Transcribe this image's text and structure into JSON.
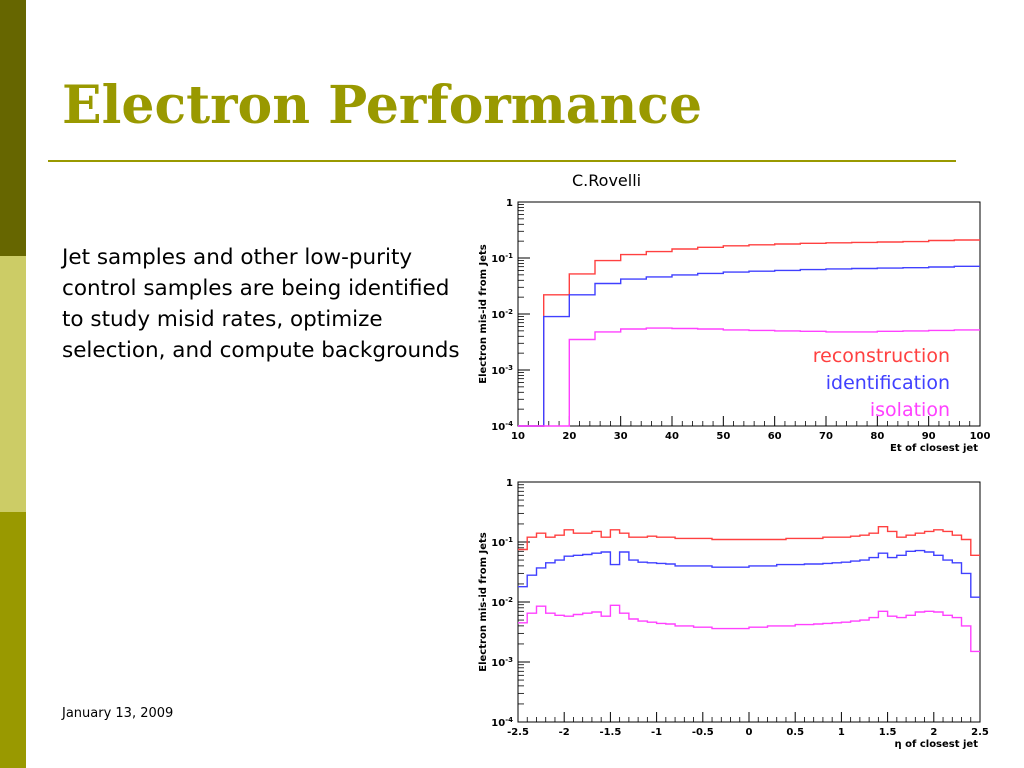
{
  "slide": {
    "title": "Electron Performance",
    "body": "Jet samples and other low-purity control samples are being identified to study misid rates, optimize selection,  and compute backgrounds",
    "date": "January 13, 2009",
    "credit": "C.Rovelli",
    "colors": {
      "title": "#999900",
      "rule": "#999900",
      "sidebar_dark": "#666600",
      "sidebar_light": "#CCCC66",
      "sidebar_mid": "#999900"
    }
  },
  "chart_data": [
    {
      "type": "line",
      "style": "step",
      "title": "",
      "xlabel": "Et of closest jet",
      "ylabel": "Electron mis-id from Jets",
      "xlim": [
        10,
        100
      ],
      "ylim": [
        0.0001,
        1
      ],
      "yscale": "log",
      "grid": false,
      "legend": "inside-bottom-right",
      "x_ticks": [
        10,
        20,
        30,
        40,
        50,
        60,
        70,
        80,
        90,
        100
      ],
      "y_ticks": [
        {
          "value": 1,
          "base": "1",
          "exp": ""
        },
        {
          "value": 0.1,
          "base": "10",
          "exp": "-1"
        },
        {
          "value": 0.01,
          "base": "10",
          "exp": "-2"
        },
        {
          "value": 0.001,
          "base": "10",
          "exp": "-3"
        },
        {
          "value": 0.0001,
          "base": "10",
          "exp": "-4"
        }
      ],
      "bin_edges": [
        10,
        15,
        20,
        25,
        30,
        35,
        40,
        45,
        50,
        55,
        60,
        65,
        70,
        75,
        80,
        85,
        90,
        95,
        100
      ],
      "series": [
        {
          "name": "reconstruction",
          "color": "#ff4040",
          "values": [
            0.0001,
            0.022,
            0.052,
            0.09,
            0.115,
            0.13,
            0.145,
            0.155,
            0.165,
            0.172,
            0.178,
            0.183,
            0.187,
            0.19,
            0.193,
            0.196,
            0.205,
            0.21
          ]
        },
        {
          "name": "identification",
          "color": "#4040ff",
          "values": [
            0.0001,
            0.009,
            0.022,
            0.035,
            0.042,
            0.046,
            0.05,
            0.053,
            0.056,
            0.058,
            0.06,
            0.062,
            0.064,
            0.065,
            0.066,
            0.067,
            0.069,
            0.071
          ]
        },
        {
          "name": "isolation",
          "color": "#ff40ff",
          "values": [
            0.0001,
            0.0001,
            0.0035,
            0.0048,
            0.0054,
            0.0056,
            0.0055,
            0.0054,
            0.0052,
            0.0051,
            0.005,
            0.0049,
            0.0048,
            0.0048,
            0.0049,
            0.005,
            0.0051,
            0.0052
          ]
        }
      ]
    },
    {
      "type": "line",
      "style": "step",
      "title": "",
      "xlabel": "η of closest jet",
      "ylabel": "Electron mis-id from Jets",
      "xlim": [
        -2.5,
        2.5
      ],
      "ylim": [
        0.0001,
        1
      ],
      "yscale": "log",
      "grid": false,
      "legend": "none",
      "x_ticks": [
        -2.5,
        -2,
        -1.5,
        -1,
        -0.5,
        0,
        0.5,
        1,
        1.5,
        2,
        2.5
      ],
      "y_ticks": [
        {
          "value": 1,
          "base": "1",
          "exp": ""
        },
        {
          "value": 0.1,
          "base": "10",
          "exp": "-1"
        },
        {
          "value": 0.01,
          "base": "10",
          "exp": "-2"
        },
        {
          "value": 0.001,
          "base": "10",
          "exp": "-3"
        },
        {
          "value": 0.0001,
          "base": "10",
          "exp": "-4"
        }
      ],
      "bin_edges": [
        -2.5,
        -2.4,
        -2.3,
        -2.2,
        -2.1,
        -2.0,
        -1.9,
        -1.8,
        -1.7,
        -1.6,
        -1.5,
        -1.4,
        -1.3,
        -1.2,
        -1.1,
        -1.0,
        -0.9,
        -0.8,
        -0.7,
        -0.6,
        -0.5,
        -0.4,
        -0.3,
        -0.2,
        -0.1,
        0.0,
        0.1,
        0.2,
        0.3,
        0.4,
        0.5,
        0.6,
        0.7,
        0.8,
        0.9,
        1.0,
        1.1,
        1.2,
        1.3,
        1.4,
        1.5,
        1.6,
        1.7,
        1.8,
        1.9,
        2.0,
        2.1,
        2.2,
        2.3,
        2.4,
        2.5
      ],
      "series": [
        {
          "name": "reconstruction",
          "color": "#ff4040",
          "values": [
            0.075,
            0.12,
            0.14,
            0.12,
            0.13,
            0.16,
            0.14,
            0.14,
            0.15,
            0.12,
            0.16,
            0.14,
            0.12,
            0.12,
            0.125,
            0.12,
            0.12,
            0.115,
            0.115,
            0.115,
            0.115,
            0.11,
            0.11,
            0.11,
            0.11,
            0.11,
            0.11,
            0.11,
            0.11,
            0.115,
            0.115,
            0.115,
            0.115,
            0.12,
            0.12,
            0.12,
            0.125,
            0.13,
            0.14,
            0.18,
            0.15,
            0.12,
            0.13,
            0.14,
            0.15,
            0.16,
            0.15,
            0.13,
            0.11,
            0.06
          ]
        },
        {
          "name": "identification",
          "color": "#4040ff",
          "values": [
            0.018,
            0.028,
            0.037,
            0.045,
            0.05,
            0.058,
            0.06,
            0.062,
            0.065,
            0.068,
            0.042,
            0.068,
            0.05,
            0.046,
            0.045,
            0.044,
            0.043,
            0.04,
            0.04,
            0.04,
            0.04,
            0.038,
            0.038,
            0.038,
            0.038,
            0.04,
            0.04,
            0.04,
            0.042,
            0.042,
            0.042,
            0.043,
            0.043,
            0.044,
            0.045,
            0.046,
            0.048,
            0.05,
            0.055,
            0.065,
            0.055,
            0.06,
            0.07,
            0.072,
            0.068,
            0.06,
            0.05,
            0.045,
            0.03,
            0.012
          ]
        },
        {
          "name": "isolation",
          "color": "#ff40ff",
          "values": [
            0.0045,
            0.0065,
            0.0085,
            0.0065,
            0.006,
            0.0058,
            0.0062,
            0.0065,
            0.0068,
            0.0058,
            0.0088,
            0.0065,
            0.0052,
            0.0048,
            0.0046,
            0.0044,
            0.0043,
            0.004,
            0.004,
            0.0038,
            0.0038,
            0.0036,
            0.0036,
            0.0036,
            0.0036,
            0.0038,
            0.0038,
            0.004,
            0.004,
            0.004,
            0.0042,
            0.0042,
            0.0043,
            0.0044,
            0.0045,
            0.0046,
            0.0048,
            0.005,
            0.0055,
            0.007,
            0.0058,
            0.0055,
            0.006,
            0.0068,
            0.007,
            0.0068,
            0.006,
            0.0055,
            0.004,
            0.0015
          ]
        }
      ]
    }
  ]
}
